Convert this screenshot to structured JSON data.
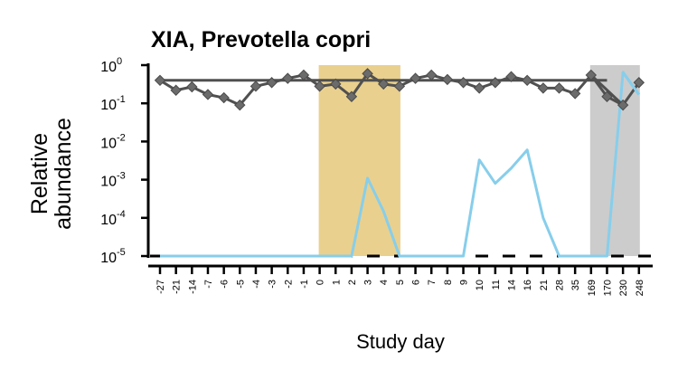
{
  "chart_data": {
    "type": "line",
    "title": "XIA, Prevotella copri",
    "ylabel_lines": [
      "Relative",
      "abundance"
    ],
    "xlabel": "Study day",
    "y_scale": "log10",
    "ylim": [
      1e-05,
      1
    ],
    "y_ticks": [
      {
        "base": "10",
        "exp": "0"
      },
      {
        "base": "10",
        "exp": "-1"
      },
      {
        "base": "10",
        "exp": "-2"
      },
      {
        "base": "10",
        "exp": "-3"
      },
      {
        "base": "10",
        "exp": "-4"
      },
      {
        "base": "10",
        "exp": "-5"
      }
    ],
    "categories": [
      "-27",
      "-21",
      "-14",
      "-7",
      "-6",
      "-5",
      "-4",
      "-3",
      "-2",
      "-1",
      "0",
      "1",
      "2",
      "3",
      "4",
      "5",
      "6",
      "7",
      "8",
      "9",
      "10",
      "11",
      "14",
      "16",
      "21",
      "28",
      "35",
      "169",
      "170",
      "230",
      "248"
    ],
    "shaded_periods": [
      {
        "from": "0",
        "to": "5",
        "color": "#e9d08e"
      },
      {
        "from": "169",
        "to": "248",
        "color": "#cccccc"
      }
    ],
    "detection_limit": 1e-05,
    "series": [
      {
        "color": "#505050",
        "marker": "diamond",
        "x": [
          "-27",
          "-21",
          "-14",
          "-7",
          "-6",
          "-5",
          "-4",
          "-3",
          "-2",
          "-1",
          "0",
          "1",
          "2",
          "3",
          "4",
          "5",
          "6",
          "7",
          "8",
          "9",
          "10",
          "11",
          "14",
          "16",
          "21",
          "28",
          "35",
          "169",
          "170",
          "230",
          "248"
        ],
        "values": [
          0.4,
          0.22,
          0.27,
          0.17,
          0.14,
          0.09,
          0.28,
          0.35,
          0.45,
          0.55,
          0.28,
          0.32,
          0.15,
          0.6,
          0.32,
          0.28,
          0.45,
          0.55,
          0.42,
          0.35,
          0.25,
          0.35,
          0.5,
          0.4,
          0.25,
          0.25,
          0.18,
          0.55,
          0.15,
          0.09,
          0.35
        ]
      },
      {
        "color": "#87ceeb",
        "marker": "none",
        "x": [
          "-27",
          "-21",
          "-14",
          "-7",
          "-6",
          "-5",
          "-4",
          "-3",
          "-2",
          "-1",
          "0",
          "1",
          "2",
          "3",
          "4",
          "5",
          "6",
          "7",
          "8",
          "9",
          "10",
          "11",
          "14",
          "16",
          "21",
          "28",
          "35",
          "169",
          "170",
          "230",
          "248"
        ],
        "values": [
          1e-05,
          1e-05,
          1e-05,
          1e-05,
          1e-05,
          1e-05,
          1e-05,
          1e-05,
          1e-05,
          1e-05,
          1e-05,
          1e-05,
          1e-05,
          0.0011,
          0.00015,
          1e-05,
          1e-05,
          1e-05,
          1e-05,
          1e-05,
          0.0033,
          0.0008,
          0.002,
          0.006,
          0.0001,
          1e-05,
          1e-05,
          1e-05,
          1e-05,
          0.65,
          0.17
        ]
      }
    ],
    "trend_lines": [
      {
        "color": "#505050",
        "from": {
          "x": "-27",
          "y": 0.4
        },
        "to": {
          "x": "170",
          "y": 0.4
        }
      },
      {
        "color": "#505050",
        "from": {
          "x": "169",
          "y": 0.55
        },
        "to": {
          "x": "230",
          "y": 0.09
        }
      },
      {
        "color": "#87ceeb",
        "from": {
          "x": "230",
          "y": 0.65
        },
        "to": {
          "x": "248",
          "y": 0.17
        }
      }
    ],
    "grid": false,
    "legend": "none"
  }
}
